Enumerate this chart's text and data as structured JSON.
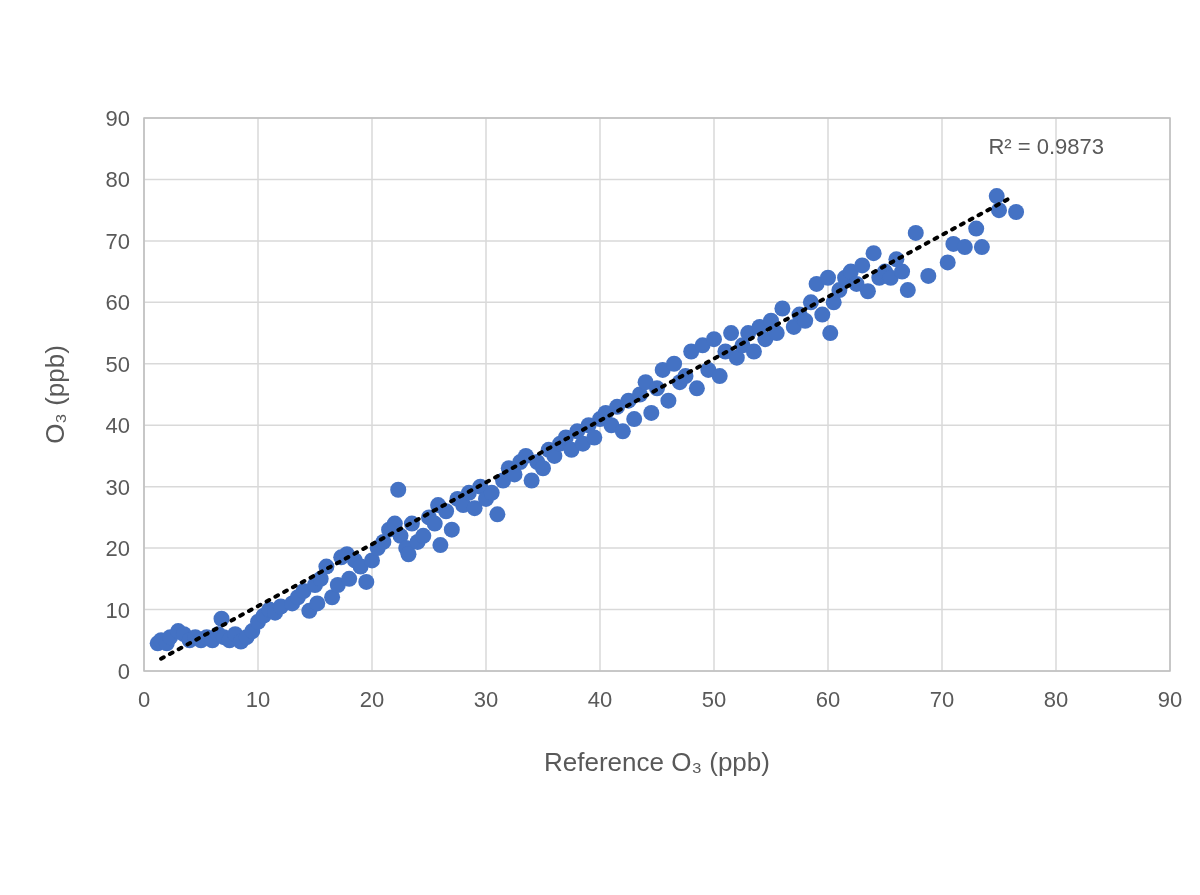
{
  "chart_data": {
    "type": "scatter",
    "xlabel": "Reference O₃ (ppb)",
    "ylabel": "O₃ (ppb)",
    "annotations": [
      "R² = 0.9873"
    ],
    "xlim": [
      0,
      90
    ],
    "ylim": [
      0,
      90
    ],
    "xticks": [
      0,
      10,
      20,
      30,
      40,
      50,
      60,
      70,
      80,
      90
    ],
    "yticks": [
      0,
      10,
      20,
      30,
      40,
      50,
      60,
      70,
      80,
      90
    ],
    "grid": true,
    "marker": "circle",
    "series": [
      {
        "color": "#4472c4",
        "x": [
          1.2,
          1.5,
          2,
          2.3,
          3,
          3.5,
          4,
          4.5,
          5,
          5.5,
          6,
          6.5,
          6.8,
          7,
          7.5,
          8,
          8.5,
          9,
          9.5,
          10,
          10.5,
          11,
          11.5,
          12,
          13,
          13.5,
          14,
          14.5,
          15,
          15.2,
          15.5,
          16,
          16.5,
          17,
          17.3,
          17.8,
          18,
          18.5,
          19,
          19.5,
          20,
          20.5,
          21,
          21.5,
          22,
          22.3,
          22.5,
          23,
          23.2,
          23.5,
          24,
          24.5,
          25,
          25.5,
          25.8,
          26,
          26.5,
          27,
          27.5,
          28,
          28.5,
          29,
          29.5,
          30,
          30.5,
          31,
          31.5,
          32,
          32.5,
          33,
          33.5,
          34,
          34.5,
          35,
          35.5,
          36,
          36.5,
          37,
          37.5,
          38,
          38.5,
          39,
          39.5,
          40,
          40.5,
          41,
          41.5,
          42,
          42.5,
          43,
          43.5,
          44,
          44.5,
          45,
          45.5,
          46,
          46.5,
          47,
          47.5,
          48,
          48.5,
          49,
          49.5,
          50,
          50.5,
          51,
          51.5,
          52,
          52.5,
          53,
          53.5,
          54,
          54.5,
          55,
          55.5,
          56,
          57,
          57.5,
          58,
          58.5,
          59,
          59.5,
          60,
          60.2,
          60.5,
          61,
          61.5,
          62,
          62.5,
          63,
          63.5,
          64,
          64.5,
          65,
          65.5,
          66,
          66.5,
          67,
          67.7,
          68.8,
          70.5,
          71,
          72,
          73,
          73.5,
          74.8,
          75,
          76.5
        ],
        "values": [
          4.5,
          5,
          4.5,
          5.5,
          6.5,
          6,
          5,
          5.5,
          5,
          5.5,
          5,
          6,
          8.5,
          5.5,
          5,
          6,
          4.8,
          5.5,
          6.5,
          8,
          9,
          10,
          9.5,
          10.5,
          11,
          12,
          13,
          9.8,
          14,
          11,
          15,
          17,
          12,
          14,
          18.5,
          19,
          15,
          18,
          17,
          14.5,
          18,
          20,
          21,
          23,
          24,
          29.5,
          22,
          20,
          19,
          24,
          21,
          22,
          25,
          24,
          27,
          20.5,
          26,
          23,
          28,
          27,
          29,
          26.5,
          30,
          28,
          29,
          25.5,
          31,
          33,
          32,
          34,
          35,
          31,
          34,
          33,
          36,
          35,
          37,
          38,
          36,
          39,
          37,
          40,
          38,
          41,
          42,
          40,
          43,
          39,
          44,
          41,
          45,
          47,
          42,
          46,
          49,
          44,
          50,
          47,
          48,
          52,
          46,
          53,
          49,
          54,
          48,
          52,
          55,
          51,
          53,
          55,
          52,
          56,
          54,
          57,
          55,
          59,
          56,
          58,
          57,
          60,
          63,
          58,
          64,
          55,
          60,
          62,
          64,
          65,
          63,
          66,
          61.8,
          68,
          64,
          65,
          64,
          67,
          65,
          62,
          71.3,
          64.3,
          66.5,
          69.5,
          69,
          72,
          69,
          77.3,
          75,
          74.7
        ]
      },
      {
        "type": "line",
        "color": "#000000",
        "line_style": "dotted",
        "marker": "none",
        "x": [
          1.5,
          76
        ],
        "values": [
          2,
          77
        ]
      }
    ]
  }
}
